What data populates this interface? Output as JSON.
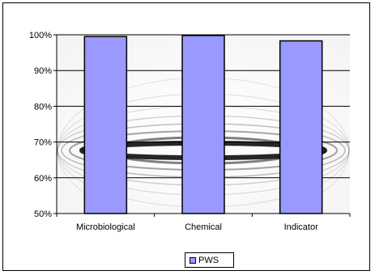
{
  "chart_data": {
    "type": "bar",
    "categories": [
      "Microbiological",
      "Chemical",
      "Indicator"
    ],
    "series": [
      {
        "name": "PWS",
        "values": [
          0.995,
          0.998,
          0.983
        ]
      }
    ],
    "ylim": [
      0.5,
      1.0
    ],
    "yticks": [
      0.5,
      0.6,
      0.7,
      0.8,
      0.9,
      1.0
    ],
    "ytick_labels": [
      "50%",
      "60%",
      "70%",
      "80%",
      "90%",
      "100%"
    ],
    "grid": true,
    "legend_position": "bottom",
    "colors": {
      "bar_fill": "#9999ff",
      "bar_stroke": "#000000",
      "gridline": "#000000"
    }
  }
}
